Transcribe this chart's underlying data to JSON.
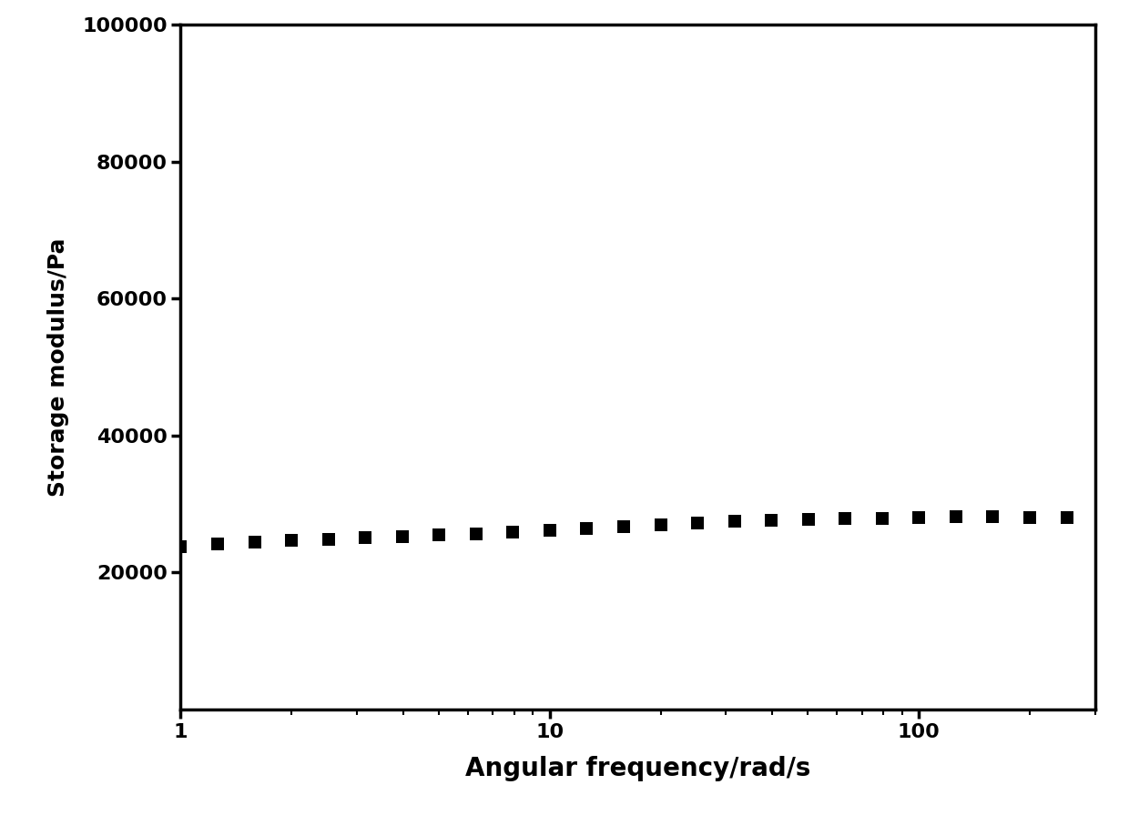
{
  "x": [
    1.0,
    1.26,
    1.585,
    2.0,
    2.512,
    3.162,
    3.981,
    5.012,
    6.31,
    7.943,
    10.0,
    12.589,
    15.849,
    19.953,
    25.119,
    31.623,
    39.811,
    50.119,
    63.096,
    79.433,
    100.0,
    125.893,
    158.489,
    199.526,
    251.189
  ],
  "y": [
    23800,
    24200,
    24500,
    24700,
    24900,
    25100,
    25300,
    25500,
    25700,
    25950,
    26200,
    26450,
    26700,
    26950,
    27200,
    27450,
    27650,
    27800,
    27900,
    27950,
    28050,
    28100,
    28100,
    28050,
    28000
  ],
  "xlabel": "Angular frequency/rad/s",
  "ylabel": "Storage modulus/Pa",
  "xlim": [
    1,
    300
  ],
  "ylim": [
    0,
    100000
  ],
  "yticks": [
    20000,
    40000,
    60000,
    80000,
    100000
  ],
  "ytick_labels": [
    "20000",
    "40000",
    "60000",
    "80000",
    "100000"
  ],
  "marker": "s",
  "marker_color": "#000000",
  "marker_size": 100,
  "background_color": "#ffffff",
  "xlabel_fontsize": 20,
  "ylabel_fontsize": 18,
  "tick_fontsize": 16,
  "spine_linewidth": 2.5
}
